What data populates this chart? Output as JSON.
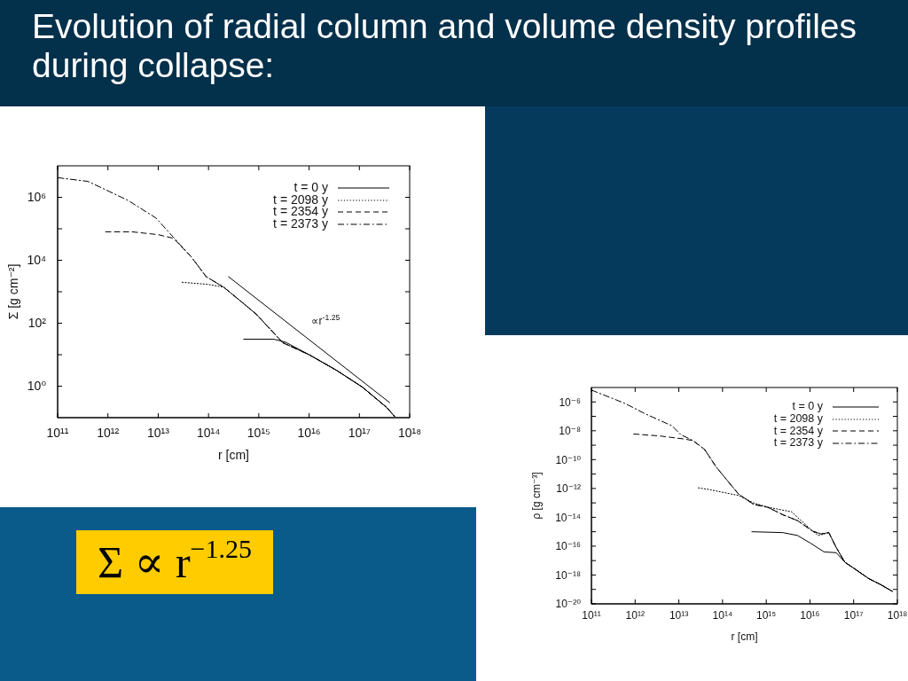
{
  "chart_data": [
    {
      "type": "line",
      "title": "Evolution of radial column and volume density profiles during collapse:",
      "xlabel": "r [cm]",
      "ylabel": "Σ [g cm⁻²]",
      "log": "xy",
      "marker": "none",
      "legend": "top right",
      "xlim": [
        100000000000.0,
        1e+18
      ],
      "xticks": [
        {
          "value": 100000000000.0,
          "label": "10¹¹"
        },
        {
          "value": 1000000000000.0,
          "label": "10¹²"
        },
        {
          "value": 10000000000000.0,
          "label": "10¹³"
        },
        {
          "value": 100000000000000.0,
          "label": "10¹⁴"
        },
        {
          "value": 1000000000000000.0,
          "label": "10¹⁵"
        },
        {
          "value": 1e+16,
          "label": "10¹⁶"
        },
        {
          "value": 1e+17,
          "label": "10¹⁷"
        },
        {
          "value": 1e+18,
          "label": "10¹⁸"
        }
      ],
      "ylim": [
        0.1,
        10000000.0
      ],
      "yticks": [
        {
          "value": 1,
          "label": "10⁰"
        },
        {
          "value": 10,
          "label": null
        },
        {
          "value": 100,
          "label": "10²"
        },
        {
          "value": 1000,
          "label": null
        },
        {
          "value": 10000,
          "label": "10⁴"
        },
        {
          "value": 100000,
          "label": null
        },
        {
          "value": 1000000,
          "label": "10⁶"
        }
      ],
      "series": [
        {
          "name": "t = 0 y",
          "color": "#000000",
          "line_style": "solid",
          "x": [
            500000000000000.0,
            2000000000000000.0,
            3400000000000000.0,
            1e+16,
            3.5e+16,
            1.15e+17,
            3.5e+17,
            5e+17
          ],
          "values": [
            31,
            31,
            25,
            10,
            3.2,
            0.93,
            0.21,
            0.11
          ]
        },
        {
          "name": "t = 2098 y",
          "color": "#000000",
          "line_style": "dotted",
          "x": [
            30000000000000.0,
            100000000000000.0,
            200000000000000.0,
            500000000000000.0,
            900000000000000.0,
            3000000000000000.0,
            1e+16,
            3.5e+16,
            1.15e+17,
            3.5e+17,
            5e+17
          ],
          "values": [
            2000,
            1700,
            1400,
            420,
            190,
            24,
            10,
            3.2,
            0.93,
            0.21,
            0.11
          ]
        },
        {
          "name": "t = 2354 y",
          "color": "#000000",
          "line_style": "dashed",
          "x": [
            900000000000.0,
            3000000000000.0,
            10000000000000.0,
            20000000000000.0,
            45000000000000.0,
            90000000000000.0,
            200000000000000.0,
            500000000000000.0,
            900000000000000.0,
            3000000000000000.0,
            1e+16,
            3.5e+16,
            1.15e+17,
            3.5e+17,
            5e+17
          ],
          "values": [
            80000,
            80000,
            65000,
            50000,
            13000,
            3000,
            1400,
            420,
            190,
            24,
            10,
            3.2,
            0.93,
            0.21,
            0.11
          ]
        },
        {
          "name": "t = 2373 y",
          "color": "#000000",
          "line_style": "dashdot",
          "x": [
            100000000000.0,
            400000000000.0,
            2500000000000.0,
            9000000000000.0,
            20000000000000.0,
            45000000000000.0,
            90000000000000.0,
            200000000000000.0,
            500000000000000.0,
            900000000000000.0,
            3000000000000000.0,
            1e+16,
            3.5e+16,
            1.15e+17,
            3.5e+17,
            5e+17
          ],
          "values": [
            4200000,
            3200000,
            800000,
            220000,
            54000,
            13000,
            3000,
            1400,
            420,
            190,
            24,
            10,
            3.2,
            0.93,
            0.21,
            0.11
          ]
        },
        {
          "color": "#000000",
          "line_style": "solid",
          "x": [
            250000000000000.0,
            4e+17
          ],
          "values": [
            3000,
            0.3
          ]
        }
      ],
      "annotations": [
        "∝r$^{-1.25}$",
        "Σ ∝ r$^{−1.25}$"
      ]
    },
    {
      "type": "line",
      "xlabel": "r [cm]",
      "ylabel": "ρ [g cm⁻³]",
      "log": "xy",
      "marker": "none",
      "legend": "top right",
      "xlim": [
        100000000000.0,
        1e+18
      ],
      "xticks": [
        {
          "value": 100000000000.0,
          "label": "10¹¹"
        },
        {
          "value": 1000000000000.0,
          "label": "10¹²"
        },
        {
          "value": 10000000000000.0,
          "label": "10¹³"
        },
        {
          "value": 100000000000000.0,
          "label": "10¹⁴"
        },
        {
          "value": 1000000000000000.0,
          "label": "10¹⁵"
        },
        {
          "value": 1e+16,
          "label": "10¹⁶"
        },
        {
          "value": 1e+17,
          "label": "10¹⁷"
        },
        {
          "value": 1e+18,
          "label": "10¹⁸"
        }
      ],
      "ylim": [
        1e-20,
        1e-05
      ],
      "yticks": [
        {
          "value": 1e-20,
          "label": "10⁻²⁰"
        },
        {
          "value": 1e-19,
          "label": null
        },
        {
          "value": 1e-18,
          "label": "10⁻¹⁸"
        },
        {
          "value": 1e-17,
          "label": null
        },
        {
          "value": 1e-16,
          "label": "10⁻¹⁶"
        },
        {
          "value": 1e-15,
          "label": null
        },
        {
          "value": 1e-14,
          "label": "10⁻¹⁴"
        },
        {
          "value": 1e-13,
          "label": null
        },
        {
          "value": 1e-12,
          "label": "10⁻¹²"
        },
        {
          "value": 1e-11,
          "label": null
        },
        {
          "value": 1e-10,
          "label": "10⁻¹⁰"
        },
        {
          "value": 1e-09,
          "label": null
        },
        {
          "value": 1e-08,
          "label": "10⁻⁸"
        },
        {
          "value": 1e-07,
          "label": null
        },
        {
          "value": 1e-06,
          "label": "10⁻⁶"
        }
      ],
      "series": [
        {
          "name": "t = 0 y",
          "color": "#000000",
          "line_style": "solid",
          "x": [
            470000000000000.0,
            2400000000000000.0,
            5200000000000000.0,
            1e+16,
            2.1e+16,
            4e+16,
            6.3e+16,
            1e+17,
            2.2e+17,
            4.1e+17,
            7.6e+17
          ],
          "values": [
            1e-15,
            8.7e-16,
            5.5e-16,
            1.7e-16,
            4e-17,
            3.5e-17,
            7.7e-18,
            3e-18,
            5.7e-19,
            2.2e-19,
            7.5e-20
          ]
        },
        {
          "name": "t = 2098 y",
          "color": "#000000",
          "line_style": "dotted",
          "x": [
            28000000000000.0,
            49000000000000.0,
            107000000000000.0,
            230000000000000.0,
            510000000000000.0,
            1100000000000000.0,
            3800000000000000.0,
            1.15e+16,
            1.55e+16,
            2.7e+16,
            4e+16,
            6.3e+16,
            1e+17,
            2.2e+17,
            4.1e+17,
            7.6e+17
          ],
          "values": [
            1.1e-12,
            8.5e-13,
            5.2e-13,
            3.3e-13,
            1e-13,
            5e-14,
            2.4e-14,
            1.1e-15,
            5.5e-16,
            8.7e-16,
            8e-17,
            7.7e-18,
            3e-18,
            5.7e-19,
            2.2e-19,
            7.5e-20
          ]
        },
        {
          "name": "t = 2354 y",
          "color": "#000000",
          "line_style": "dashed",
          "x": [
            930000000000.0,
            3800000000000.0,
            13000000000000.0,
            21000000000000.0,
            39000000000000.0,
            72000000000000.0,
            107000000000000.0,
            230000000000000.0,
            510000000000000.0,
            1100000000000000.0,
            2400000000000000.0,
            5200000000000000.0,
            1.15e+16,
            1.8e+16,
            2.7e+16,
            4e+16,
            6.3e+16,
            1e+17,
            2.2e+17,
            4.1e+17,
            7.6e+17
          ],
          "values": [
            6e-09,
            4.3e-09,
            2.7e-09,
            2.1e-09,
            5e-10,
            3e-11,
            7e-12,
            4.2e-13,
            8e-14,
            4.9e-14,
            1.5e-14,
            5.9e-15,
            1.1e-15,
            7e-16,
            8.7e-16,
            8e-17,
            7.7e-18,
            3e-18,
            5.7e-19,
            2.2e-19,
            7.5e-20
          ]
        },
        {
          "name": "t = 2373 y",
          "color": "#000000",
          "line_style": "dashdot",
          "x": [
            100000000000.0,
            580000000000.0,
            1700000000000.0,
            7000000000000.0,
            11000000000000.0,
            21000000000000.0,
            39000000000000.0,
            72000000000000.0,
            107000000000000.0,
            230000000000000.0,
            510000000000000.0,
            1100000000000000.0,
            2400000000000000.0,
            5200000000000000.0,
            1.15e+16,
            1.8e+16,
            2.7e+16,
            4e+16,
            6.3e+16,
            1e+17,
            2.2e+17,
            4.1e+17,
            7.6e+17
          ],
          "values": [
            6.6e-06,
            8e-07,
            1.5e-07,
            2.2e-08,
            5.4e-09,
            2.1e-09,
            5e-10,
            3e-11,
            7e-12,
            4.2e-13,
            8e-14,
            4.9e-14,
            1.5e-14,
            5.9e-15,
            1.1e-15,
            7e-16,
            8.7e-16,
            8e-17,
            7.7e-18,
            3e-18,
            5.7e-19,
            2.2e-19,
            7.5e-20
          ]
        }
      ]
    }
  ]
}
